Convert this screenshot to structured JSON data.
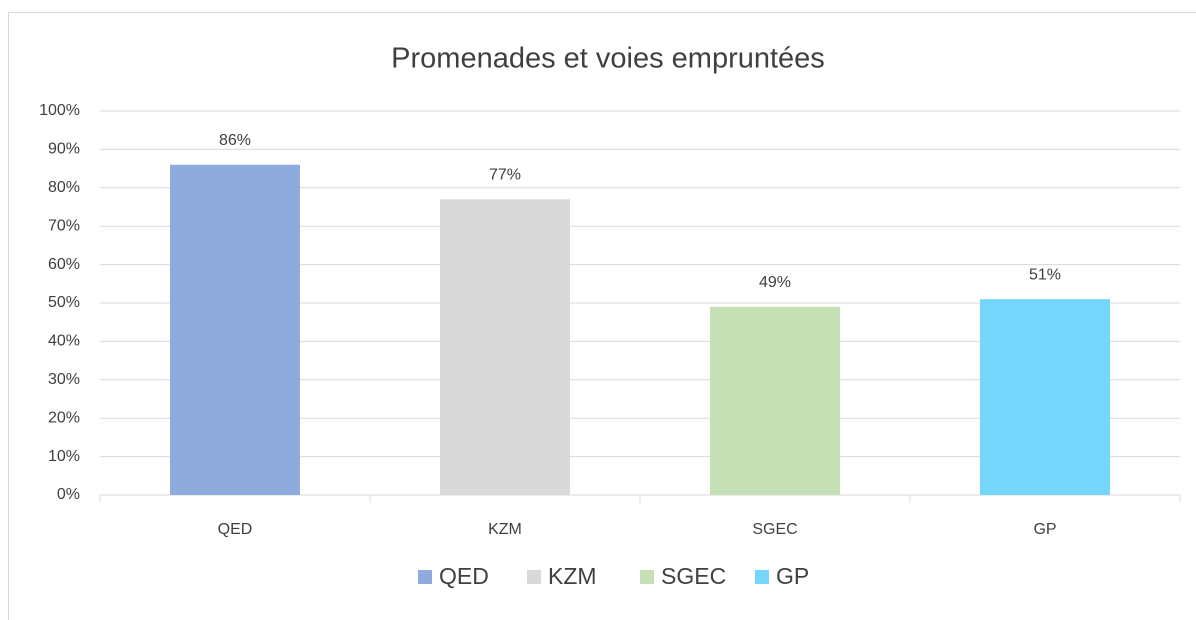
{
  "chart_data": {
    "type": "bar",
    "title": "Promenades et voies empruntées",
    "categories": [
      "QED",
      "KZM",
      "SGEC",
      "GP"
    ],
    "values": [
      86,
      77,
      49,
      51
    ],
    "value_labels": [
      "86%",
      "77%",
      "49%",
      "51%"
    ],
    "colors": [
      "#8faadc",
      "#d9d9d9",
      "#c5e0b4",
      "#75d5fb"
    ],
    "ylim": [
      0,
      100
    ],
    "yticks": [
      {
        "value": 0,
        "label": "0%"
      },
      {
        "value": 10,
        "label": "10%"
      },
      {
        "value": 20,
        "label": "20%"
      },
      {
        "value": 30,
        "label": "30%"
      },
      {
        "value": 40,
        "label": "40%"
      },
      {
        "value": 50,
        "label": "50%"
      },
      {
        "value": 60,
        "label": "60%"
      },
      {
        "value": 70,
        "label": "70%"
      },
      {
        "value": 80,
        "label": "80%"
      },
      {
        "value": 90,
        "label": "90%"
      },
      {
        "value": 100,
        "label": "100%"
      }
    ],
    "grid": true,
    "legend": "bottom"
  }
}
